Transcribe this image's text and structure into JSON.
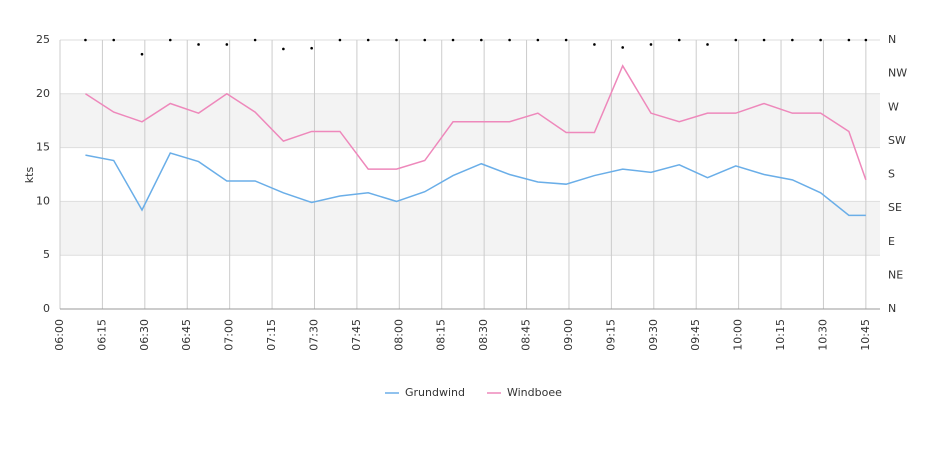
{
  "chart_data": {
    "type": "line",
    "ylabel": "kts",
    "x": [
      "06:09",
      "06:19",
      "06:29",
      "06:39",
      "06:49",
      "06:59",
      "07:09",
      "07:19",
      "07:29",
      "07:39",
      "07:49",
      "07:59",
      "08:09",
      "08:19",
      "08:29",
      "08:39",
      "08:49",
      "08:59",
      "09:09",
      "09:19",
      "09:29",
      "09:39",
      "09:49",
      "09:59",
      "10:09",
      "10:19",
      "10:29",
      "10:39",
      "10:45"
    ],
    "series": [
      {
        "name": "Grundwind",
        "color": "#6aaee8",
        "values": [
          14.3,
          13.8,
          9.2,
          14.5,
          13.7,
          11.9,
          11.9,
          10.8,
          9.9,
          10.5,
          10.8,
          10.0,
          10.9,
          12.4,
          13.5,
          12.5,
          11.8,
          11.6,
          12.4,
          13.0,
          12.7,
          13.4,
          12.2,
          13.3,
          12.5,
          12.0,
          10.8,
          8.7,
          8.7
        ]
      },
      {
        "name": "Windboee",
        "color": "#ee88bb",
        "values": [
          20.0,
          18.3,
          17.4,
          19.1,
          18.2,
          20.0,
          18.3,
          15.6,
          16.5,
          16.5,
          13.0,
          13.0,
          13.8,
          17.4,
          17.4,
          17.4,
          18.2,
          16.4,
          16.4,
          22.6,
          18.2,
          17.4,
          18.2,
          18.2,
          19.1,
          18.2,
          18.2,
          16.5,
          12.0
        ]
      },
      {
        "color": "#000000",
        "axis": "y2",
        "values": [
          360,
          360,
          341,
          360,
          354,
          354,
          360,
          348,
          349,
          360,
          360,
          360,
          360,
          360,
          360,
          360,
          360,
          360,
          354,
          350,
          354,
          360,
          354,
          360,
          360,
          360,
          360,
          360,
          360
        ]
      }
    ],
    "xlim": [
      "06:00",
      "10:50"
    ],
    "xticks": [
      "06:00",
      "06:15",
      "06:30",
      "06:45",
      "07:00",
      "07:15",
      "07:30",
      "07:45",
      "08:00",
      "08:15",
      "08:30",
      "08:45",
      "09:00",
      "09:15",
      "09:30",
      "09:45",
      "10:00",
      "10:15",
      "10:30",
      "10:45"
    ],
    "ylim": [
      0,
      25
    ],
    "yticks": [
      0,
      5,
      10,
      15,
      20,
      25
    ],
    "y2lim": [
      0,
      360
    ],
    "y2ticks": [
      {
        "value": 0,
        "label": "N"
      },
      {
        "value": 45,
        "label": "NE"
      },
      {
        "value": 90,
        "label": "E"
      },
      {
        "value": 135,
        "label": "SE"
      },
      {
        "value": 180,
        "label": "S"
      },
      {
        "value": 225,
        "label": "SW"
      },
      {
        "value": 270,
        "label": "W"
      },
      {
        "value": 315,
        "label": "NW"
      },
      {
        "value": 360,
        "label": "N"
      }
    ],
    "shaded_bands": [
      [
        5,
        10
      ],
      [
        15,
        20
      ]
    ],
    "grid": true,
    "legend": "bottom"
  }
}
